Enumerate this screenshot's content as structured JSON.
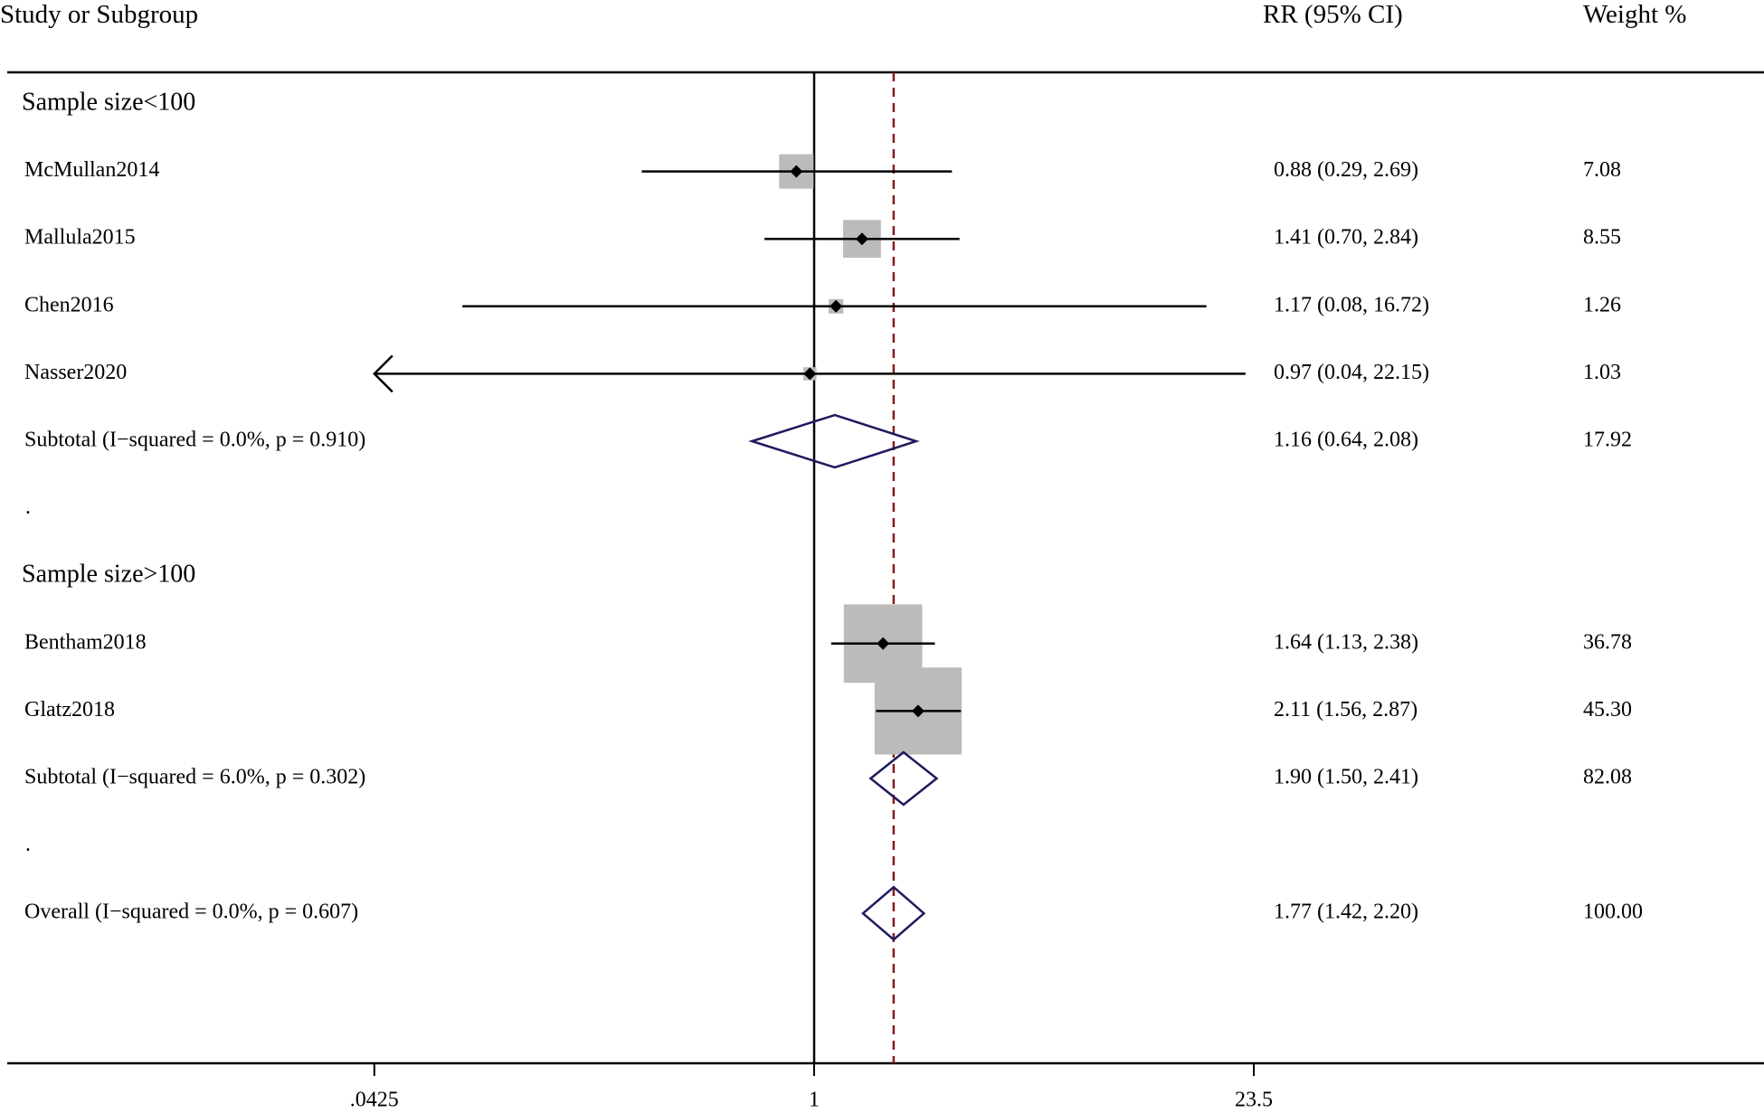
{
  "header": {
    "study_label": "Study or Subgroup",
    "rr_label": "RR (95% CI)",
    "weight_label": "Weight %"
  },
  "colors": {
    "ci_line": "#000000",
    "weight_box": "#bbbbbb",
    "diamond": "#1f1a5e",
    "overall_line": "#8b1a1a",
    "axis": "#000000"
  },
  "chart_data": {
    "type": "forest",
    "scale": "log",
    "null_value": 1,
    "overall_estimate": 1.77,
    "display_range": [
      0.0425,
      23.5
    ],
    "x_ticks": [
      {
        "value": 0.0425,
        "label": ".0425"
      },
      {
        "value": 1,
        "label": "1"
      },
      {
        "value": 23.5,
        "label": "23.5"
      }
    ],
    "rows": [
      {
        "kind": "group",
        "label": "Sample size<100"
      },
      {
        "kind": "study",
        "label": "McMullan2014",
        "rr": 0.88,
        "lo": 0.29,
        "hi": 2.69,
        "rr_text": "0.88 (0.29, 2.69)",
        "weight": 7.08,
        "weight_text": "7.08"
      },
      {
        "kind": "study",
        "label": "Mallula2015",
        "rr": 1.41,
        "lo": 0.7,
        "hi": 2.84,
        "rr_text": "1.41 (0.70, 2.84)",
        "weight": 8.55,
        "weight_text": "8.55"
      },
      {
        "kind": "study",
        "label": "Chen2016",
        "rr": 1.17,
        "lo": 0.08,
        "hi": 16.72,
        "rr_text": "1.17 (0.08, 16.72)",
        "weight": 1.26,
        "weight_text": "1.26"
      },
      {
        "kind": "study",
        "label": "Nasser2020",
        "rr": 0.97,
        "lo": 0.04,
        "hi": 22.15,
        "rr_text": "0.97 (0.04, 22.15)",
        "weight": 1.03,
        "weight_text": "1.03"
      },
      {
        "kind": "subtotal",
        "label": "Subtotal  (I−squared = 0.0%, p = 0.910)",
        "rr": 1.16,
        "lo": 0.64,
        "hi": 2.08,
        "rr_text": "1.16 (0.64, 2.08)",
        "weight": 17.92,
        "weight_text": "17.92"
      },
      {
        "kind": "spacer",
        "label": "."
      },
      {
        "kind": "group",
        "label": "Sample size>100"
      },
      {
        "kind": "study",
        "label": "Bentham2018",
        "rr": 1.64,
        "lo": 1.13,
        "hi": 2.38,
        "rr_text": "1.64 (1.13, 2.38)",
        "weight": 36.78,
        "weight_text": "36.78"
      },
      {
        "kind": "study",
        "label": "Glatz2018",
        "rr": 2.11,
        "lo": 1.56,
        "hi": 2.87,
        "rr_text": "2.11 (1.56, 2.87)",
        "weight": 45.3,
        "weight_text": "45.30"
      },
      {
        "kind": "subtotal",
        "label": "Subtotal  (I−squared = 6.0%, p = 0.302)",
        "rr": 1.9,
        "lo": 1.5,
        "hi": 2.41,
        "rr_text": "1.90 (1.50, 2.41)",
        "weight": 82.08,
        "weight_text": "82.08"
      },
      {
        "kind": "spacer",
        "label": "."
      },
      {
        "kind": "overall",
        "label": "Overall  (I−squared = 0.0%, p = 0.607)",
        "rr": 1.77,
        "lo": 1.42,
        "hi": 2.2,
        "rr_text": "1.77 (1.42, 2.20)",
        "weight": 100.0,
        "weight_text": "100.00"
      }
    ]
  }
}
